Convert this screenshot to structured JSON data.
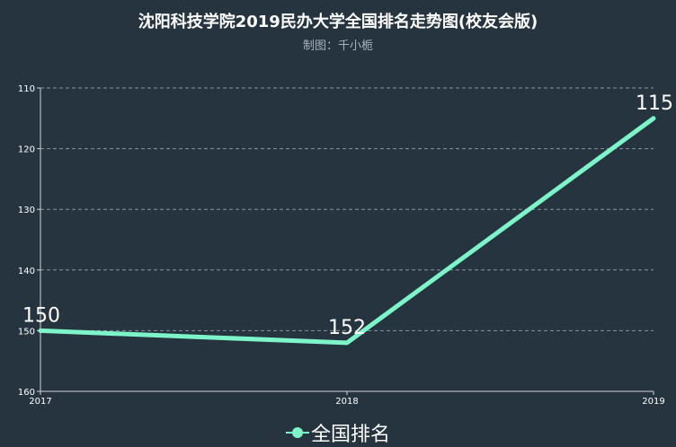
{
  "chart_data": {
    "type": "line",
    "title": "沈阳科技学院2019民办大学全国排名走势图(校友会版)",
    "subtitle": "制图：千小栀",
    "x": [
      "2017",
      "2018",
      "2019"
    ],
    "series": [
      {
        "name": "全国排名",
        "values": [
          150,
          152,
          115
        ]
      }
    ],
    "y_ticks": [
      110,
      120,
      130,
      140,
      150,
      160
    ],
    "ylim": [
      110,
      160
    ],
    "y_inverted": true,
    "grid": true,
    "legend_position": "bottom-center",
    "colors": {
      "background": "#263440",
      "line": "#7df5c9",
      "grid": "#8a939b",
      "axis": "#d0d4d8"
    }
  }
}
